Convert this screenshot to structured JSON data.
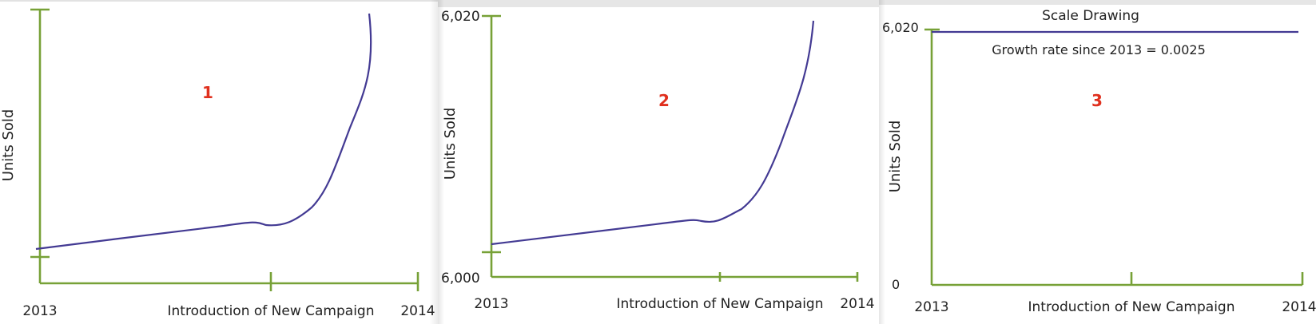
{
  "colors": {
    "axis": "#77a137",
    "curve": "#433a93",
    "marker": "#e0301e",
    "text": "#222222"
  },
  "chart_data": [
    {
      "type": "line",
      "marker": "1",
      "xlabel": "",
      "ylabel": "Units Sold",
      "x_ticks": [
        "2013",
        "Introduction of New Campaign",
        "2014"
      ],
      "y_ticks": [],
      "ylim": [
        6000,
        6020
      ],
      "series": [
        {
          "x": [
            0,
            0.25,
            0.45,
            0.55,
            0.57,
            0.62,
            0.7,
            0.75,
            0.8,
            0.86,
            0.91,
            0.95,
            0.99
          ],
          "y": [
            6000.4,
            6001.6,
            6002.5,
            6002.8,
            6002.7,
            6002.6,
            6003.4,
            6004.6,
            6006.5,
            6010.4,
            6013.2,
            6015.8,
            6020.3
          ]
        }
      ]
    },
    {
      "type": "line",
      "marker": "2",
      "xlabel": "",
      "ylabel": "Units Sold",
      "x_ticks": [
        "2013",
        "Introduction of New Campaign",
        "2014"
      ],
      "y_ticks": [
        "6,000",
        "6,020"
      ],
      "ylim": [
        6000,
        6020
      ],
      "series": [
        {
          "x": [
            0,
            0.25,
            0.45,
            0.55,
            0.57,
            0.62,
            0.7,
            0.75,
            0.8,
            0.86,
            0.91,
            0.95,
            0.99
          ],
          "y": [
            6002.5,
            6003.5,
            6004.3,
            6004.6,
            6004.4,
            6004.3,
            6005.4,
            6006.8,
            6008.8,
            6012.8,
            6015.6,
            6017.9,
            6020.4
          ]
        }
      ]
    },
    {
      "type": "line",
      "marker": "3",
      "title": "Scale Drawing",
      "annotation": "Growth rate since 2013 = 0.0025",
      "xlabel": "",
      "ylabel": "Units Sold",
      "x_ticks": [
        "2013",
        "Introduction of New Campaign",
        "2014"
      ],
      "y_ticks": [
        "0",
        "6,020"
      ],
      "ylim": [
        0,
        6020
      ],
      "series": [
        {
          "x": [
            0,
            1
          ],
          "y": [
            6020,
            6020
          ]
        }
      ]
    }
  ]
}
